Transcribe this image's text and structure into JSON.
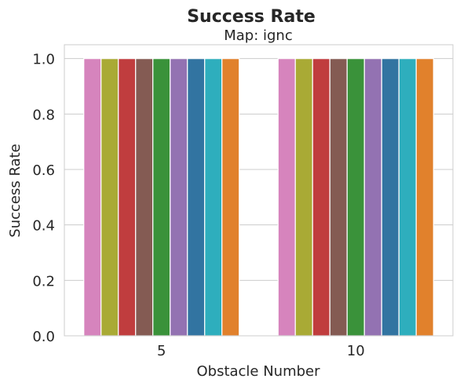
{
  "chart_data": {
    "type": "bar",
    "title": "Success Rate",
    "subtitle": "Map: ignc",
    "xlabel": "Obstacle Number",
    "ylabel": "Success Rate",
    "categories": [
      "5",
      "10"
    ],
    "ylim": [
      0,
      1.05
    ],
    "yticks": [
      "0.0",
      "0.2",
      "0.4",
      "0.6",
      "0.8",
      "1.0"
    ],
    "grid": true,
    "legend": "none",
    "series": [
      {
        "values": [
          1.0,
          1.0
        ],
        "color": "#d684bd"
      },
      {
        "values": [
          1.0,
          1.0
        ],
        "color": "#a9aa35"
      },
      {
        "values": [
          1.0,
          1.0
        ],
        "color": "#c03d3e"
      },
      {
        "values": [
          1.0,
          1.0
        ],
        "color": "#845b53"
      },
      {
        "values": [
          1.0,
          1.0
        ],
        "color": "#3a923a"
      },
      {
        "values": [
          1.0,
          1.0
        ],
        "color": "#9372b2"
      },
      {
        "values": [
          1.0,
          1.0
        ],
        "color": "#3274a1"
      },
      {
        "values": [
          1.0,
          1.0
        ],
        "color": "#2eaebd"
      },
      {
        "values": [
          1.0,
          1.0
        ],
        "color": "#e1812c"
      }
    ]
  }
}
